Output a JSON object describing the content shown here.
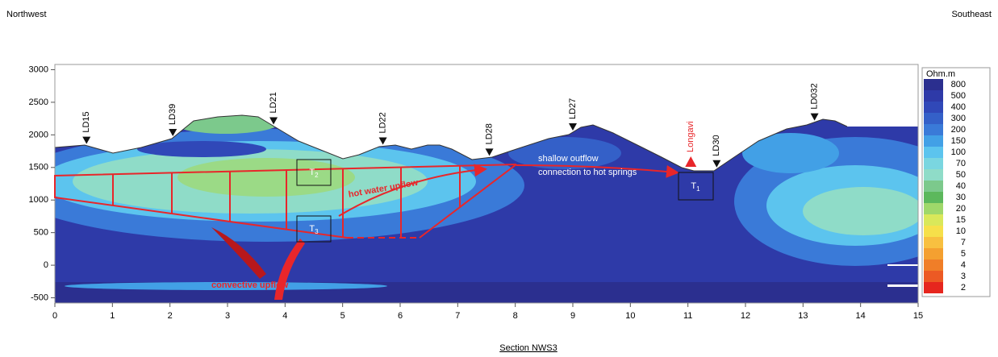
{
  "labels": {
    "left": "Northwest",
    "right": "Southeast",
    "caption": "Section NWS3"
  },
  "axes": {
    "xlim": [
      0,
      15
    ],
    "xticks": [
      0,
      1,
      2,
      3,
      4,
      5,
      6,
      7,
      8,
      9,
      10,
      11,
      12,
      13,
      14,
      15
    ],
    "ylim": [
      -580,
      3080
    ],
    "yticks": [
      -500,
      0,
      500,
      1000,
      1500,
      2000,
      2500,
      3000
    ]
  },
  "stations": [
    {
      "name": "LD15",
      "x": 0.55
    },
    {
      "name": "LD39",
      "x": 2.05
    },
    {
      "name": "LD21",
      "x": 3.8
    },
    {
      "name": "LD22",
      "x": 5.7
    },
    {
      "name": "LD28",
      "x": 7.55
    },
    {
      "name": "LD27",
      "x": 9
    },
    {
      "name": "LD30",
      "x": 11.5
    },
    {
      "name": "LD032",
      "x": 13.2
    }
  ],
  "volcano": {
    "name": "Longavi",
    "x": 11.05
  },
  "annotations": {
    "outflow_1": "shallow outflow",
    "outflow_2": "connection to hot springs",
    "upflow": "hot water upflow",
    "convective": "convective upflow"
  },
  "boxes": [
    {
      "main": "T",
      "sub": "2"
    },
    {
      "main": "T",
      "sub": "3"
    },
    {
      "main": "T",
      "sub": "1"
    }
  ],
  "colorbar": {
    "title": "Ohm.m",
    "labels": [
      800,
      500,
      400,
      300,
      200,
      150,
      100,
      70,
      50,
      40,
      30,
      20,
      15,
      10,
      7,
      5,
      4,
      3,
      2
    ],
    "colors": [
      "#2b2f8f",
      "#2e3aa8",
      "#3048b8",
      "#3460c8",
      "#3a7ad8",
      "#42a0e6",
      "#5cc4ee",
      "#7ad6e0",
      "#8fdcc8",
      "#7cc98c",
      "#5cb85c",
      "#9fd86a",
      "#d9e85a",
      "#f6e04a",
      "#f8c040",
      "#f4a030",
      "#f07e28",
      "#ec5a24",
      "#e6261e"
    ]
  }
}
